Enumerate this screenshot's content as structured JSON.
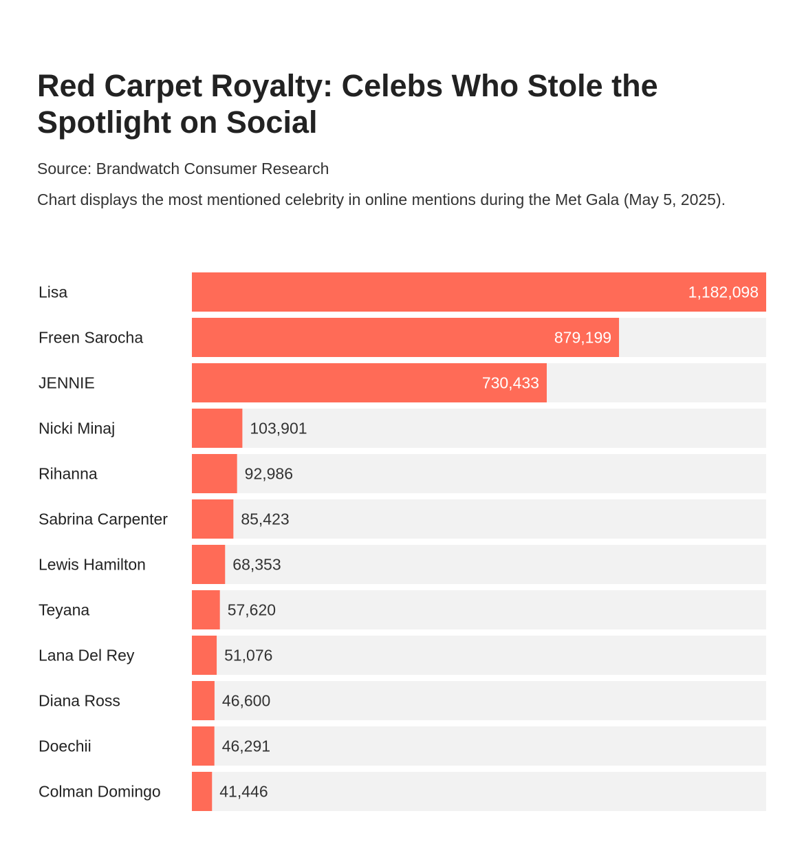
{
  "header": {
    "title": "Red Carpet Royalty: Celebs Who Stole the Spotlight on Social",
    "source": "Source: Brandwatch Consumer Research",
    "description": "Chart displays the most mentioned celebrity in online mentions during the Met Gala (May 5, 2025)."
  },
  "colors": {
    "bar": "#FF6B57",
    "track": "#F2F2F2",
    "label_inside": "#FFFFFF",
    "label_outside": "#333333"
  },
  "chart_data": {
    "type": "bar",
    "orientation": "horizontal",
    "title": "Red Carpet Royalty: Celebs Who Stole the Spotlight on Social",
    "xlabel": "",
    "ylabel": "",
    "xlim": [
      0,
      1182098
    ],
    "grid": false,
    "categories": [
      "Lisa",
      "Freen Sarocha",
      "JENNIE",
      "Nicki Minaj",
      "Rihanna",
      "Sabrina Carpenter",
      "Lewis Hamilton",
      "Teyana",
      "Lana Del Rey",
      "Diana Ross",
      "Doechii",
      "Colman Domingo"
    ],
    "values": [
      1182098,
      879199,
      730433,
      103901,
      92986,
      85423,
      68353,
      57620,
      51076,
      46600,
      46291,
      41446
    ],
    "value_labels": [
      "1,182,098",
      "879,199",
      "730,433",
      "103,901",
      "92,986",
      "85,423",
      "68,353",
      "57,620",
      "51,076",
      "46,600",
      "46,291",
      "41,446"
    ]
  }
}
